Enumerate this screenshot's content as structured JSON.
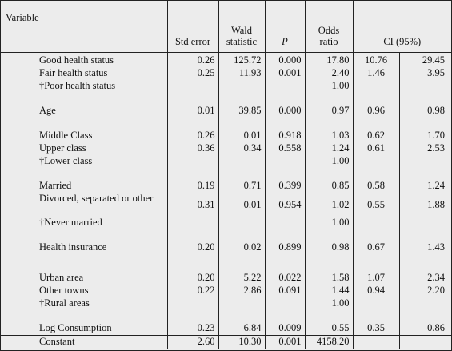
{
  "header": {
    "variable": "Variable",
    "std_error": "Std error",
    "wald": "Wald statistic",
    "p": "P",
    "odds": "Odds ratio",
    "ci": "CI (95%)"
  },
  "rows": [
    {
      "name": "Good health status",
      "se": "0.26",
      "wald": "125.72",
      "p": "0.000",
      "or": "17.80",
      "lo": "10.76",
      "hi": "29.45"
    },
    {
      "name": "Fair health status",
      "se": "0.25",
      "wald": "11.93",
      "p": "0.001",
      "or": "2.40",
      "lo": "1.46",
      "hi": "3.95"
    },
    {
      "name": "†Poor health status",
      "se": "",
      "wald": "",
      "p": "",
      "or": "1.00",
      "lo": "",
      "hi": ""
    },
    {
      "name": "Age",
      "se": "0.01",
      "wald": "39.85",
      "p": "0.000",
      "or": "0.97",
      "lo": "0.96",
      "hi": "0.98"
    },
    {
      "name": "Middle Class",
      "se": "0.26",
      "wald": "0.01",
      "p": "0.918",
      "or": "1.03",
      "lo": "0.62",
      "hi": "1.70"
    },
    {
      "name": "Upper class",
      "se": "0.36",
      "wald": "0.34",
      "p": "0.558",
      "or": "1.24",
      "lo": "0.61",
      "hi": "2.53"
    },
    {
      "name": "†Lower class",
      "se": "",
      "wald": "",
      "p": "",
      "or": "1.00",
      "lo": "",
      "hi": ""
    },
    {
      "name": "Married",
      "se": "0.19",
      "wald": "0.71",
      "p": "0.399",
      "or": "0.85",
      "lo": "0.58",
      "hi": "1.24"
    },
    {
      "name": "Divorced, separated or other",
      "se": "0.31",
      "wald": "0.01",
      "p": "0.954",
      "or": "1.02",
      "lo": "0.55",
      "hi": "1.88"
    },
    {
      "name": "†Never married",
      "se": "",
      "wald": "",
      "p": "",
      "or": "1.00",
      "lo": "",
      "hi": ""
    },
    {
      "name": "Health insurance",
      "se": "0.20",
      "wald": "0.02",
      "p": "0.899",
      "or": "0.98",
      "lo": "0.67",
      "hi": "1.43"
    },
    {
      "name": "Urban area",
      "se": "0.20",
      "wald": "5.22",
      "p": "0.022",
      "or": "1.58",
      "lo": "1.07",
      "hi": "2.34"
    },
    {
      "name": "Other towns",
      "se": "0.22",
      "wald": "2.86",
      "p": "0.091",
      "or": "1.44",
      "lo": "0.94",
      "hi": "2.20"
    },
    {
      "name": "†Rural areas",
      "se": "",
      "wald": "",
      "p": "",
      "or": "1.00",
      "lo": "",
      "hi": ""
    },
    {
      "name": "Log Consumption",
      "se": "0.23",
      "wald": "6.84",
      "p": "0.009",
      "or": "0.55",
      "lo": "0.35",
      "hi": "0.86"
    },
    {
      "name": "Constant",
      "se": "2.60",
      "wald": "10.30",
      "p": "0.001",
      "or": "4158.20",
      "lo": "",
      "hi": ""
    }
  ]
}
